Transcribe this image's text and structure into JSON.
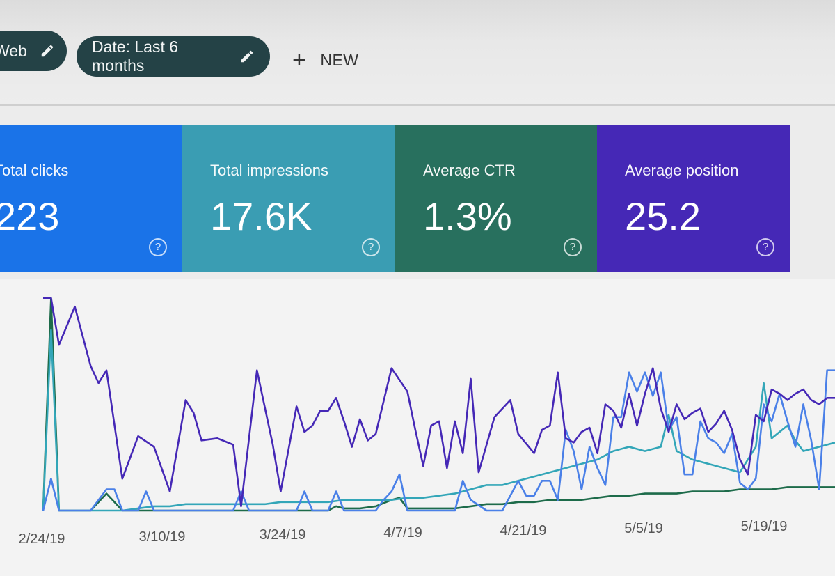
{
  "filters": {
    "type_chip": "Web",
    "date_chip": "Date: Last 6 months",
    "new_label": "NEW",
    "edit_icon": "pencil-icon",
    "add_icon": "plus-icon"
  },
  "metrics": [
    {
      "label": "Total clicks",
      "value": "223",
      "color": "#1a73e8",
      "help_icon": "help-circle-icon"
    },
    {
      "label": "Total impressions",
      "value": "17.6K",
      "color": "#3a9db3",
      "help_icon": "help-circle-icon"
    },
    {
      "label": "Average CTR",
      "value": "1.3%",
      "color": "#28705e",
      "help_icon": "help-circle-icon"
    },
    {
      "label": "Average position",
      "value": "25.2",
      "color": "#4528b6",
      "help_icon": "help-circle-icon"
    }
  ],
  "chart_data": {
    "type": "line",
    "title": "",
    "xlabel": "",
    "ylabel": "",
    "x_ticks": [
      "2/24/19",
      "3/10/19",
      "3/24/19",
      "4/7/19",
      "4/21/19",
      "5/5/19",
      "5/19/19"
    ],
    "x_start": 0,
    "x_end": 100,
    "ylim": [
      0,
      100
    ],
    "grid": false,
    "legend": "none",
    "series": [
      {
        "color": "#4528b6",
        "values": [
          [
            0,
            100
          ],
          [
            1,
            100
          ],
          [
            2,
            78
          ],
          [
            4,
            96
          ],
          [
            6,
            68
          ],
          [
            7,
            60
          ],
          [
            8,
            66
          ],
          [
            10,
            15
          ],
          [
            12,
            35
          ],
          [
            14,
            30
          ],
          [
            16,
            9
          ],
          [
            18,
            52
          ],
          [
            19,
            46
          ],
          [
            20,
            33
          ],
          [
            22,
            34
          ],
          [
            24,
            31
          ],
          [
            25,
            2
          ],
          [
            27,
            66
          ],
          [
            29,
            31
          ],
          [
            30,
            9
          ],
          [
            32,
            49
          ],
          [
            33,
            37
          ],
          [
            34,
            40
          ],
          [
            35,
            47
          ],
          [
            36,
            47
          ],
          [
            37,
            53
          ],
          [
            38,
            42
          ],
          [
            39,
            30
          ],
          [
            40,
            43
          ],
          [
            41,
            33
          ],
          [
            42,
            36
          ],
          [
            44,
            67
          ],
          [
            46,
            56
          ],
          [
            47,
            38
          ],
          [
            48,
            21
          ],
          [
            49,
            40
          ],
          [
            50,
            42
          ],
          [
            51,
            20
          ],
          [
            52,
            42
          ],
          [
            53,
            27
          ],
          [
            54,
            62
          ],
          [
            55,
            18
          ],
          [
            56,
            31
          ],
          [
            57,
            44
          ],
          [
            59,
            52
          ],
          [
            60,
            36
          ],
          [
            62,
            27
          ],
          [
            63,
            38
          ],
          [
            64,
            40
          ],
          [
            65,
            65
          ],
          [
            66,
            34
          ],
          [
            67,
            32
          ],
          [
            68,
            37
          ],
          [
            69,
            39
          ],
          [
            70,
            27
          ],
          [
            71,
            50
          ],
          [
            72,
            47
          ],
          [
            73,
            39
          ],
          [
            74,
            55
          ],
          [
            75,
            40
          ],
          [
            76,
            55
          ],
          [
            77,
            67
          ],
          [
            78,
            48
          ],
          [
            79,
            37
          ],
          [
            80,
            50
          ],
          [
            81,
            43
          ],
          [
            82,
            46
          ],
          [
            83,
            48
          ],
          [
            84,
            37
          ],
          [
            85,
            41
          ],
          [
            86,
            47
          ],
          [
            87,
            38
          ],
          [
            88,
            24
          ],
          [
            89,
            17
          ],
          [
            90,
            45
          ],
          [
            91,
            42
          ],
          [
            92,
            57
          ],
          [
            93,
            55
          ],
          [
            94,
            52
          ],
          [
            95,
            55
          ],
          [
            96,
            57
          ],
          [
            97,
            52
          ],
          [
            98,
            50
          ],
          [
            99,
            53
          ],
          [
            100,
            53
          ]
        ]
      },
      {
        "color": "#4a80e8",
        "values": [
          [
            0,
            0
          ],
          [
            1,
            15
          ],
          [
            2,
            0
          ],
          [
            4,
            0
          ],
          [
            6,
            0
          ],
          [
            8,
            10
          ],
          [
            9,
            10
          ],
          [
            10,
            0
          ],
          [
            12,
            0
          ],
          [
            13,
            9
          ],
          [
            14,
            0
          ],
          [
            16,
            0
          ],
          [
            18,
            0
          ],
          [
            20,
            0
          ],
          [
            22,
            0
          ],
          [
            24,
            0
          ],
          [
            25,
            9
          ],
          [
            26,
            0
          ],
          [
            28,
            0
          ],
          [
            30,
            0
          ],
          [
            32,
            0
          ],
          [
            33,
            9
          ],
          [
            34,
            0
          ],
          [
            36,
            0
          ],
          [
            37,
            9
          ],
          [
            38,
            0
          ],
          [
            40,
            0
          ],
          [
            42,
            0
          ],
          [
            43,
            5
          ],
          [
            44,
            9
          ],
          [
            45,
            17
          ],
          [
            46,
            0
          ],
          [
            48,
            0
          ],
          [
            50,
            0
          ],
          [
            52,
            0
          ],
          [
            53,
            14
          ],
          [
            54,
            5
          ],
          [
            56,
            0
          ],
          [
            58,
            0
          ],
          [
            59,
            7
          ],
          [
            60,
            14
          ],
          [
            61,
            7
          ],
          [
            62,
            7
          ],
          [
            63,
            14
          ],
          [
            64,
            14
          ],
          [
            65,
            5
          ],
          [
            66,
            38
          ],
          [
            67,
            28
          ],
          [
            68,
            10
          ],
          [
            69,
            30
          ],
          [
            70,
            20
          ],
          [
            71,
            12
          ],
          [
            72,
            44
          ],
          [
            73,
            44
          ],
          [
            74,
            65
          ],
          [
            75,
            56
          ],
          [
            76,
            65
          ],
          [
            77,
            54
          ],
          [
            78,
            65
          ],
          [
            79,
            38
          ],
          [
            80,
            44
          ],
          [
            81,
            17
          ],
          [
            82,
            17
          ],
          [
            83,
            42
          ],
          [
            84,
            34
          ],
          [
            85,
            32
          ],
          [
            86,
            27
          ],
          [
            87,
            36
          ],
          [
            88,
            13
          ],
          [
            89,
            10
          ],
          [
            90,
            15
          ],
          [
            91,
            50
          ],
          [
            92,
            42
          ],
          [
            93,
            55
          ],
          [
            94,
            42
          ],
          [
            95,
            30
          ],
          [
            96,
            50
          ],
          [
            97,
            33
          ],
          [
            98,
            10
          ],
          [
            99,
            66
          ],
          [
            100,
            66
          ]
        ]
      },
      {
        "color": "#33a6b8",
        "values": [
          [
            0,
            0
          ],
          [
            1,
            85
          ],
          [
            2,
            0
          ],
          [
            4,
            0
          ],
          [
            6,
            0
          ],
          [
            8,
            0
          ],
          [
            10,
            0
          ],
          [
            12,
            1
          ],
          [
            14,
            2
          ],
          [
            16,
            2
          ],
          [
            18,
            3
          ],
          [
            20,
            3
          ],
          [
            22,
            3
          ],
          [
            24,
            3
          ],
          [
            26,
            3
          ],
          [
            28,
            3
          ],
          [
            30,
            4
          ],
          [
            32,
            4
          ],
          [
            34,
            4
          ],
          [
            36,
            4
          ],
          [
            38,
            5
          ],
          [
            40,
            5
          ],
          [
            42,
            5
          ],
          [
            44,
            5
          ],
          [
            46,
            6
          ],
          [
            48,
            6
          ],
          [
            50,
            7
          ],
          [
            52,
            8
          ],
          [
            54,
            10
          ],
          [
            56,
            12
          ],
          [
            58,
            12
          ],
          [
            60,
            14
          ],
          [
            62,
            16
          ],
          [
            64,
            18
          ],
          [
            66,
            20
          ],
          [
            68,
            22
          ],
          [
            70,
            24
          ],
          [
            72,
            28
          ],
          [
            74,
            30
          ],
          [
            76,
            28
          ],
          [
            78,
            30
          ],
          [
            79,
            45
          ],
          [
            80,
            28
          ],
          [
            82,
            24
          ],
          [
            84,
            22
          ],
          [
            86,
            20
          ],
          [
            88,
            18
          ],
          [
            90,
            30
          ],
          [
            91,
            60
          ],
          [
            92,
            34
          ],
          [
            94,
            40
          ],
          [
            95,
            33
          ],
          [
            96,
            28
          ],
          [
            98,
            30
          ],
          [
            100,
            32
          ]
        ]
      },
      {
        "color": "#1d6b4a",
        "values": [
          [
            0,
            0
          ],
          [
            1,
            100
          ],
          [
            2,
            0
          ],
          [
            4,
            0
          ],
          [
            6,
            0
          ],
          [
            8,
            8
          ],
          [
            9,
            4
          ],
          [
            10,
            0
          ],
          [
            12,
            0
          ],
          [
            14,
            0
          ],
          [
            16,
            0
          ],
          [
            18,
            0
          ],
          [
            20,
            0
          ],
          [
            22,
            0
          ],
          [
            24,
            0
          ],
          [
            26,
            0
          ],
          [
            28,
            0
          ],
          [
            30,
            0
          ],
          [
            32,
            0
          ],
          [
            34,
            0
          ],
          [
            36,
            0
          ],
          [
            37,
            2
          ],
          [
            38,
            1
          ],
          [
            40,
            1
          ],
          [
            42,
            2
          ],
          [
            44,
            5
          ],
          [
            45,
            6
          ],
          [
            46,
            1
          ],
          [
            48,
            1
          ],
          [
            50,
            1
          ],
          [
            52,
            1
          ],
          [
            54,
            2
          ],
          [
            56,
            3
          ],
          [
            58,
            3
          ],
          [
            60,
            4
          ],
          [
            62,
            4
          ],
          [
            64,
            5
          ],
          [
            66,
            5
          ],
          [
            68,
            5
          ],
          [
            70,
            6
          ],
          [
            72,
            7
          ],
          [
            74,
            7
          ],
          [
            76,
            8
          ],
          [
            78,
            8
          ],
          [
            80,
            8
          ],
          [
            82,
            9
          ],
          [
            84,
            9
          ],
          [
            86,
            9
          ],
          [
            88,
            10
          ],
          [
            90,
            10
          ],
          [
            92,
            10
          ],
          [
            94,
            11
          ],
          [
            96,
            11
          ],
          [
            98,
            11
          ],
          [
            100,
            11
          ]
        ]
      }
    ]
  }
}
